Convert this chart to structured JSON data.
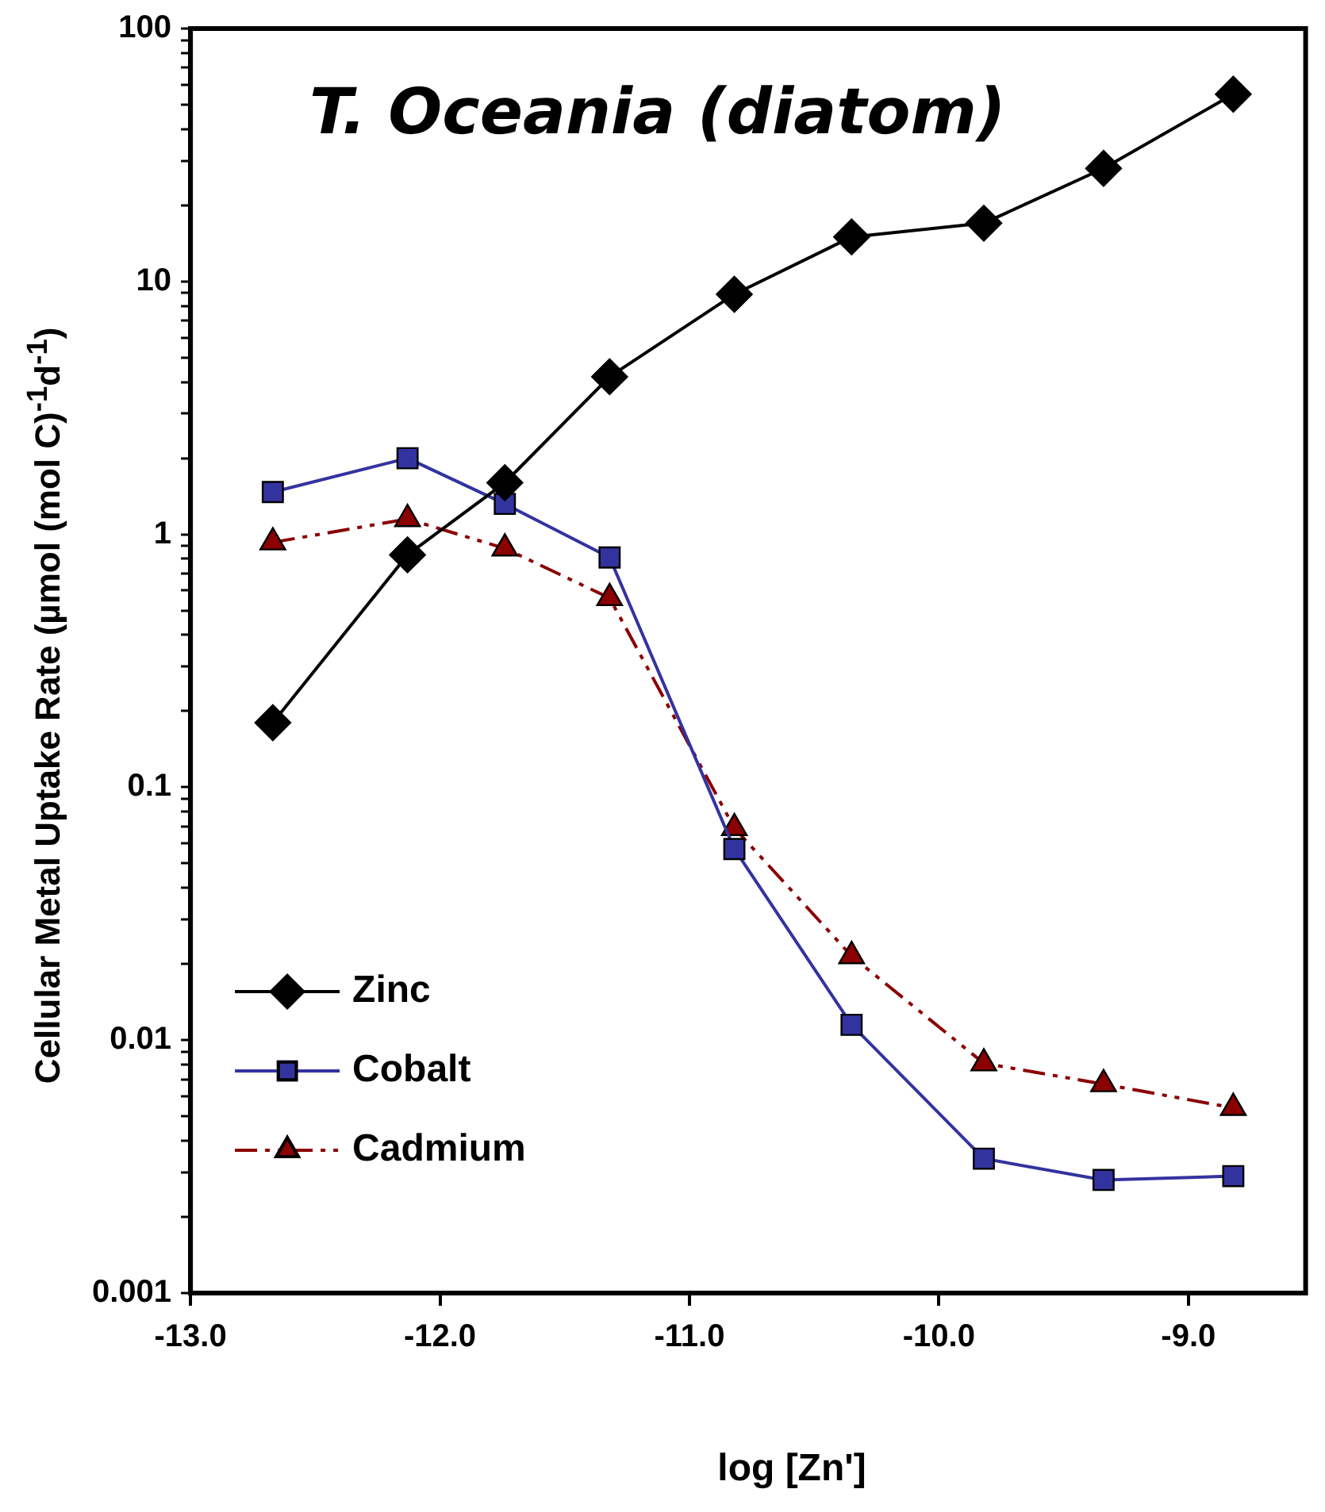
{
  "chart_data": {
    "type": "line",
    "title": "T. Oceania (diatom)",
    "xlabel": "log [Zn']",
    "ylabel": "Cellular Metal Uptake Rate (µmol (mol C)$^{-1}$d$^{-1}$)",
    "x": [
      -12.67,
      -12.13,
      -11.74,
      -11.32,
      -10.82,
      -10.35,
      -9.82,
      -9.34,
      -8.82
    ],
    "series": [
      {
        "name": "Zinc",
        "color": "#000000",
        "marker": "diamond",
        "line_style": "solid",
        "values": [
          0.18,
          0.83,
          1.6,
          4.2,
          8.9,
          15,
          17,
          28,
          55
        ]
      },
      {
        "name": "Cobalt",
        "color": "#3333a0",
        "marker": "square",
        "line_style": "solid",
        "values": [
          1.47,
          2.0,
          1.32,
          0.81,
          0.057,
          0.0115,
          0.0034,
          0.0028,
          0.0029
        ]
      },
      {
        "name": "Cadmium",
        "color": "#8b0000",
        "marker": "triangle",
        "line_style": "dashed",
        "values": [
          0.93,
          1.15,
          0.88,
          0.56,
          0.069,
          0.0215,
          0.0081,
          0.0067,
          0.0054
        ]
      }
    ],
    "xlim": [
      -13,
      -8.53
    ],
    "xticks": [
      {
        "value": -13,
        "label": "-13.0"
      },
      {
        "value": -12,
        "label": "-12.0"
      },
      {
        "value": -11,
        "label": "-11.0"
      },
      {
        "value": -10,
        "label": "-10.0"
      },
      {
        "value": -9,
        "label": "-9.0"
      }
    ],
    "ylim": [
      0.001,
      100
    ],
    "yticks": [
      0.001,
      {
        "value": 0.002,
        "label": null
      },
      {
        "value": 0.003,
        "label": null
      },
      {
        "value": 0.004,
        "label": null
      },
      {
        "value": 0.005,
        "label": null
      },
      {
        "value": 0.006,
        "label": null
      },
      {
        "value": 0.007,
        "label": null
      },
      {
        "value": 0.008,
        "label": null
      },
      {
        "value": 0.009,
        "label": null
      },
      0.01,
      {
        "value": 0.02,
        "label": null
      },
      {
        "value": 0.03,
        "label": null
      },
      {
        "value": 0.04,
        "label": null
      },
      {
        "value": 0.05,
        "label": null
      },
      {
        "value": 0.06,
        "label": null
      },
      {
        "value": 0.07,
        "label": null
      },
      {
        "value": 0.08,
        "label": null
      },
      {
        "value": 0.09,
        "label": null
      },
      0.1,
      {
        "value": 0.2,
        "label": null
      },
      {
        "value": 0.3,
        "label": null
      },
      {
        "value": 0.4,
        "label": null
      },
      {
        "value": 0.5,
        "label": null
      },
      {
        "value": 0.6,
        "label": null
      },
      {
        "value": 0.7,
        "label": null
      },
      {
        "value": 0.8,
        "label": null
      },
      {
        "value": 0.9,
        "label": null
      },
      1,
      {
        "value": 2,
        "label": null
      },
      {
        "value": 3,
        "label": null
      },
      {
        "value": 4,
        "label": null
      },
      {
        "value": 5,
        "label": null
      },
      {
        "value": 6,
        "label": null
      },
      {
        "value": 7,
        "label": null
      },
      {
        "value": 8,
        "label": null
      },
      {
        "value": 9,
        "label": null
      },
      10,
      {
        "value": 20,
        "label": null
      },
      {
        "value": 30,
        "label": null
      },
      {
        "value": 40,
        "label": null
      },
      {
        "value": 50,
        "label": null
      },
      {
        "value": 60,
        "label": null
      },
      {
        "value": 70,
        "label": null
      },
      {
        "value": 80,
        "label": null
      },
      {
        "value": 90,
        "label": null
      },
      100
    ],
    "log": "y",
    "grid": false,
    "legend": "bottom left"
  }
}
